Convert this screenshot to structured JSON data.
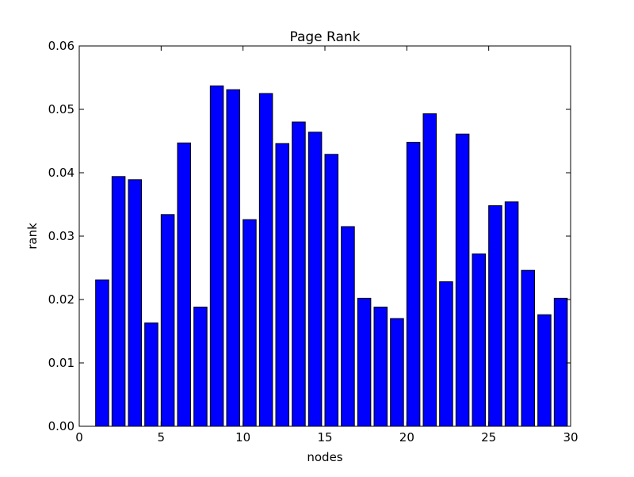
{
  "chart_data": {
    "type": "bar",
    "title": "Page Rank",
    "xlabel": "nodes",
    "ylabel": "rank",
    "xlim": [
      0,
      30
    ],
    "ylim": [
      0,
      0.06
    ],
    "x_ticks": [
      0,
      5,
      10,
      15,
      20,
      25,
      30
    ],
    "x_tick_labels": [
      "0",
      "5",
      "10",
      "15",
      "20",
      "25",
      "30"
    ],
    "y_ticks": [
      0,
      0.01,
      0.02,
      0.03,
      0.04,
      0.05,
      0.06
    ],
    "y_tick_labels": [
      "0.00",
      "0.01",
      "0.02",
      "0.03",
      "0.04",
      "0.05",
      "0.06"
    ],
    "x": [
      1,
      2,
      3,
      4,
      5,
      6,
      7,
      8,
      9,
      10,
      11,
      12,
      13,
      14,
      15,
      16,
      17,
      18,
      19,
      20,
      21,
      22,
      23,
      24,
      25,
      26,
      27,
      28,
      29
    ],
    "values": [
      0.0231,
      0.0394,
      0.0389,
      0.0163,
      0.0334,
      0.0447,
      0.0188,
      0.0537,
      0.0531,
      0.0326,
      0.0525,
      0.0446,
      0.048,
      0.0464,
      0.0429,
      0.0315,
      0.0202,
      0.0188,
      0.017,
      0.0448,
      0.0493,
      0.0228,
      0.0461,
      0.0272,
      0.0348,
      0.0354,
      0.0246,
      0.0176,
      0.0202
    ],
    "bar_color": "#0000ff",
    "edge_color": "#000000",
    "grid": false,
    "legend": "none"
  }
}
